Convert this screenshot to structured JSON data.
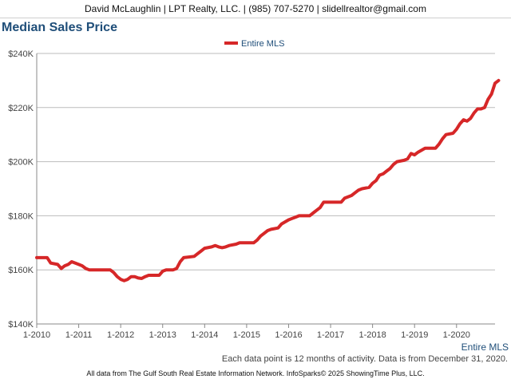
{
  "header": {
    "contact": "David McLaughlin | LPT Realty, LLC. | (985) 707-5270 | slidellrealtor@gmail.com"
  },
  "footer": {
    "note": "Each data point is 12 months of activity. Data is from December 31, 2020.",
    "source": "All data from The Gulf South Real Estate Information Network. InfoSparks© 2025 ShowingTime Plus, LLC."
  },
  "colors": {
    "series": "#d62728",
    "title": "#1f4e79",
    "axis_label": "#1f4e79",
    "grid": "#bbbbbb"
  },
  "chart_data": {
    "type": "line",
    "title": "Median Sales Price",
    "xlabel": "",
    "ylabel": "",
    "ylim": [
      140000,
      240000
    ],
    "yticks": [
      140000,
      160000,
      180000,
      200000,
      220000,
      240000
    ],
    "ytick_labels": [
      "$140K",
      "$160K",
      "$180K",
      "$200K",
      "$220K",
      "$240K"
    ],
    "xticks": [
      2010,
      2011,
      2012,
      2013,
      2014,
      2015,
      2016,
      2017,
      2018,
      2019,
      2020
    ],
    "xtick_labels": [
      "1-2010",
      "1-2011",
      "1-2012",
      "1-2013",
      "1-2014",
      "1-2015",
      "1-2016",
      "1-2017",
      "1-2018",
      "1-2019",
      "1-2020"
    ],
    "xlim": [
      2010,
      2020.917
    ],
    "legend": {
      "position": "top-center",
      "entries": [
        "Entire MLS"
      ]
    },
    "end_label": "Entire MLS",
    "grid": true,
    "series": [
      {
        "name": "Entire MLS",
        "points": [
          [
            2010.0,
            164500
          ],
          [
            2010.25,
            164500
          ],
          [
            2010.333,
            162500
          ],
          [
            2010.5,
            162000
          ],
          [
            2010.583,
            160500
          ],
          [
            2010.667,
            161500
          ],
          [
            2010.75,
            162000
          ],
          [
            2010.833,
            163000
          ],
          [
            2011.0,
            162000
          ],
          [
            2011.083,
            161500
          ],
          [
            2011.167,
            160500
          ],
          [
            2011.25,
            160000
          ],
          [
            2011.5,
            160000
          ],
          [
            2011.75,
            160000
          ],
          [
            2011.833,
            159000
          ],
          [
            2011.917,
            157500
          ],
          [
            2012.0,
            156500
          ],
          [
            2012.083,
            156000
          ],
          [
            2012.167,
            156500
          ],
          [
            2012.25,
            157500
          ],
          [
            2012.333,
            157500
          ],
          [
            2012.417,
            157000
          ],
          [
            2012.5,
            156800
          ],
          [
            2012.583,
            157500
          ],
          [
            2012.667,
            158000
          ],
          [
            2012.917,
            158000
          ],
          [
            2013.0,
            159500
          ],
          [
            2013.083,
            160000
          ],
          [
            2013.25,
            160000
          ],
          [
            2013.333,
            160500
          ],
          [
            2013.417,
            163000
          ],
          [
            2013.5,
            164500
          ],
          [
            2013.75,
            165000
          ],
          [
            2013.833,
            166000
          ],
          [
            2013.917,
            167000
          ],
          [
            2014.0,
            168000
          ],
          [
            2014.167,
            168500
          ],
          [
            2014.25,
            169000
          ],
          [
            2014.333,
            168500
          ],
          [
            2014.417,
            168200
          ],
          [
            2014.5,
            168500
          ],
          [
            2014.583,
            169000
          ],
          [
            2014.75,
            169500
          ],
          [
            2014.833,
            170000
          ],
          [
            2015.0,
            170000
          ],
          [
            2015.167,
            170000
          ],
          [
            2015.25,
            171000
          ],
          [
            2015.333,
            172500
          ],
          [
            2015.417,
            173500
          ],
          [
            2015.5,
            174500
          ],
          [
            2015.583,
            175000
          ],
          [
            2015.75,
            175500
          ],
          [
            2015.833,
            177000
          ],
          [
            2016.0,
            178500
          ],
          [
            2016.083,
            179000
          ],
          [
            2016.167,
            179500
          ],
          [
            2016.25,
            180000
          ],
          [
            2016.5,
            180000
          ],
          [
            2016.583,
            181000
          ],
          [
            2016.667,
            182000
          ],
          [
            2016.75,
            183000
          ],
          [
            2016.833,
            185000
          ],
          [
            2017.0,
            185000
          ],
          [
            2017.25,
            185000
          ],
          [
            2017.333,
            186500
          ],
          [
            2017.5,
            187500
          ],
          [
            2017.583,
            188500
          ],
          [
            2017.667,
            189500
          ],
          [
            2017.75,
            190000
          ],
          [
            2017.917,
            190500
          ],
          [
            2018.0,
            192000
          ],
          [
            2018.083,
            193000
          ],
          [
            2018.167,
            195000
          ],
          [
            2018.25,
            195500
          ],
          [
            2018.333,
            196500
          ],
          [
            2018.417,
            197500
          ],
          [
            2018.5,
            199000
          ],
          [
            2018.583,
            200000
          ],
          [
            2018.75,
            200500
          ],
          [
            2018.833,
            201000
          ],
          [
            2018.917,
            203000
          ],
          [
            2019.0,
            202500
          ],
          [
            2019.083,
            203500
          ],
          [
            2019.25,
            205000
          ],
          [
            2019.5,
            205000
          ],
          [
            2019.583,
            206500
          ],
          [
            2019.667,
            208500
          ],
          [
            2019.75,
            210000
          ],
          [
            2019.917,
            210500
          ],
          [
            2020.0,
            212000
          ],
          [
            2020.083,
            214000
          ],
          [
            2020.167,
            215500
          ],
          [
            2020.25,
            215000
          ],
          [
            2020.333,
            216000
          ],
          [
            2020.417,
            218000
          ],
          [
            2020.5,
            219500
          ],
          [
            2020.583,
            219500
          ],
          [
            2020.667,
            220000
          ],
          [
            2020.75,
            223000
          ],
          [
            2020.833,
            225000
          ],
          [
            2020.917,
            229000
          ],
          [
            2021.0,
            230000
          ]
        ]
      }
    ]
  }
}
